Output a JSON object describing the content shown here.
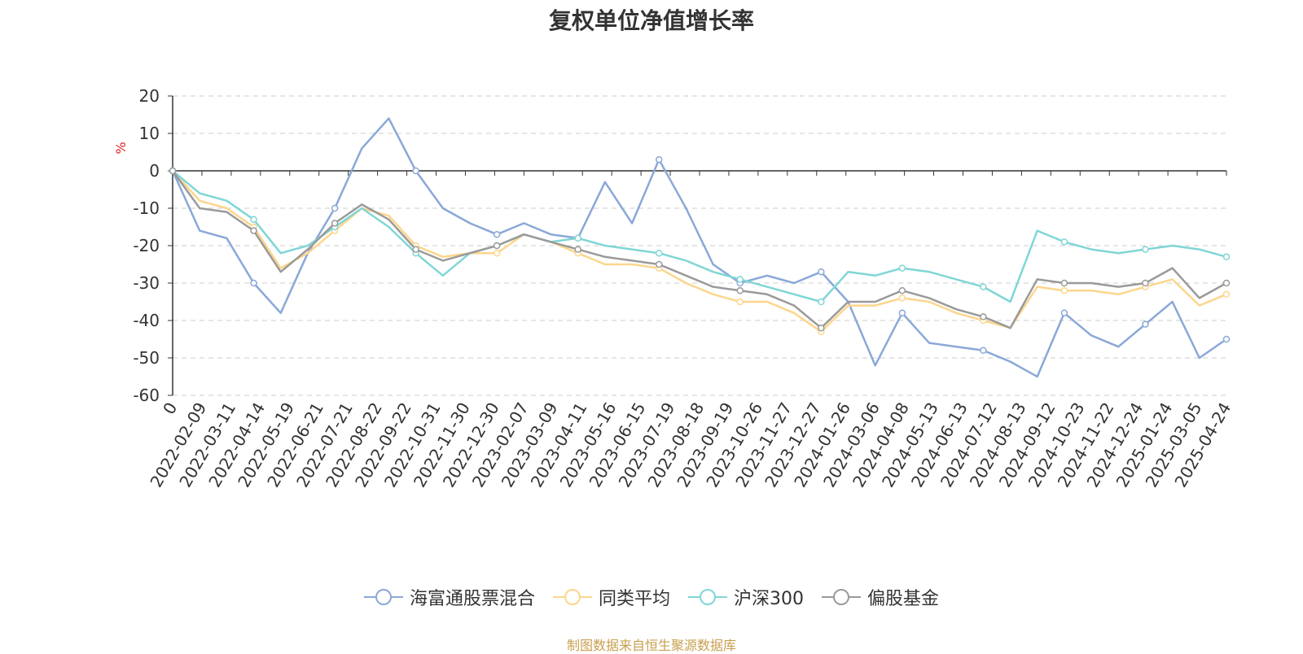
{
  "title": "复权单位净值增长率",
  "source_note": "制图数据来自恒生聚源数据库",
  "chart_data": {
    "type": "line",
    "title": "复权单位净值增长率",
    "ylabel": "%",
    "ylim": [
      -60,
      20
    ],
    "yticks": [
      20,
      10,
      0,
      -10,
      -20,
      -30,
      -40,
      -50,
      -60
    ],
    "grid": true,
    "legend_position": "bottom",
    "x_ticks": [
      "0",
      "2022-02-09",
      "2022-03-11",
      "2022-04-14",
      "2022-05-19",
      "2022-06-21",
      "2022-07-21",
      "2022-08-22",
      "2022-09-22",
      "2022-10-31",
      "2022-11-30",
      "2022-12-30",
      "2023-02-07",
      "2023-03-09",
      "2023-04-11",
      "2023-05-16",
      "2023-06-15",
      "2023-07-19",
      "2023-08-18",
      "2023-09-19",
      "2023-10-26",
      "2023-11-27",
      "2023-12-27",
      "2024-01-26",
      "2024-03-06",
      "2024-04-08",
      "2024-05-13",
      "2024-06-13",
      "2024-07-12",
      "2024-08-13",
      "2024-09-12",
      "2024-10-23",
      "2024-11-22",
      "2024-12-24",
      "2025-01-24",
      "2025-03-05",
      "2025-04-24"
    ],
    "series": [
      {
        "name": "海富通股票混合",
        "color": "#8aa8d8",
        "values": [
          0,
          -16,
          -18,
          -30,
          -38,
          -22,
          -10,
          6,
          14,
          0,
          -10,
          -14,
          -17,
          -14,
          -17,
          -18,
          -3,
          -14,
          3,
          -10,
          -25,
          -30,
          -28,
          -30,
          -27,
          -35,
          -52,
          -38,
          -46,
          -47,
          -48,
          -51,
          -55,
          -38,
          -44,
          -47,
          -41,
          -35,
          -50,
          -45
        ]
      },
      {
        "name": "同类平均",
        "color": "#fcd68c",
        "values": [
          0,
          -8,
          -10,
          -15,
          -26,
          -22,
          -16,
          -10,
          -12,
          -20,
          -23,
          -22,
          -22,
          -17,
          -19,
          -22,
          -25,
          -25,
          -26,
          -30,
          -33,
          -35,
          -35,
          -38,
          -43,
          -36,
          -36,
          -34,
          -35,
          -38,
          -40,
          -42,
          -31,
          -32,
          -32,
          -33,
          -31,
          -29,
          -36,
          -33
        ]
      },
      {
        "name": "沪深300",
        "color": "#80d6d6",
        "values": [
          0,
          -6,
          -8,
          -13,
          -22,
          -20,
          -15,
          -10,
          -15,
          -22,
          -28,
          -22,
          -20,
          -17,
          -19,
          -18,
          -20,
          -21,
          -22,
          -24,
          -27,
          -29,
          -31,
          -33,
          -35,
          -27,
          -28,
          -26,
          -27,
          -29,
          -31,
          -35,
          -16,
          -19,
          -21,
          -22,
          -21,
          -20,
          -21,
          -23
        ]
      },
      {
        "name": "偏股基金",
        "color": "#9a9a9a",
        "values": [
          0,
          -10,
          -11,
          -16,
          -27,
          -21,
          -14,
          -9,
          -13,
          -21,
          -24,
          -22,
          -20,
          -17,
          -19,
          -21,
          -23,
          -24,
          -25,
          -28,
          -31,
          -32,
          -33,
          -36,
          -42,
          -35,
          -35,
          -32,
          -34,
          -37,
          -39,
          -42,
          -29,
          -30,
          -30,
          -31,
          -30,
          -26,
          -34,
          -30
        ]
      }
    ]
  }
}
